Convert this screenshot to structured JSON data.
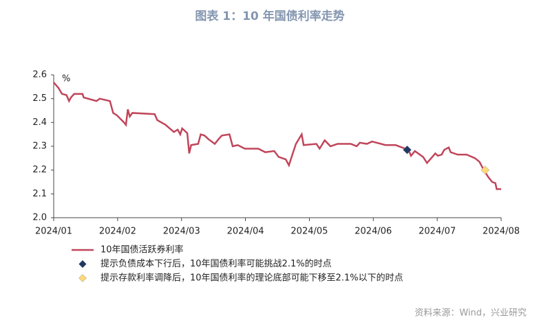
{
  "chart_data": {
    "type": "line",
    "title": "图表 1：10 年国债利率走势",
    "y_unit": "%",
    "source": "资料来源：Wind，兴业研究",
    "xlim": [
      0,
      7
    ],
    "xticks": [
      {
        "value": 0,
        "label": "2024/01"
      },
      {
        "value": 1,
        "label": "2024/02"
      },
      {
        "value": 2,
        "label": "2024/03"
      },
      {
        "value": 3,
        "label": "2024/04"
      },
      {
        "value": 4,
        "label": "2024/05"
      },
      {
        "value": 5,
        "label": "2024/06"
      },
      {
        "value": 6,
        "label": "2024/07"
      },
      {
        "value": 7,
        "label": "2024/08"
      }
    ],
    "ylim": [
      2.0,
      2.6
    ],
    "yticks": [
      {
        "value": 2,
        "label": "2.0"
      },
      2.1,
      2.2,
      2.3,
      2.4,
      2.5,
      2.6
    ],
    "grid": false,
    "series": [
      {
        "name": "10年国债活跃券利率",
        "color": "#c0455a",
        "style": "line",
        "x": [
          0,
          0.075,
          0.13,
          0.2,
          0.24,
          0.27,
          0.32,
          0.45,
          0.47,
          0.67,
          0.72,
          0.88,
          0.93,
          0.99,
          1.1,
          1.13,
          1.16,
          1.19,
          1.23,
          1.58,
          1.62,
          1.75,
          1.88,
          1.94,
          1.98,
          2.01,
          2.09,
          2.12,
          2.15,
          2.26,
          2.3,
          2.36,
          2.42,
          2.52,
          2.58,
          2.63,
          2.75,
          2.8,
          2.88,
          2.99,
          3.2,
          3.31,
          3.45,
          3.52,
          3.63,
          3.68,
          3.74,
          3.79,
          3.88,
          3.91,
          4.11,
          4.16,
          4.24,
          4.33,
          4.44,
          4.65,
          4.74,
          4.79,
          4.9,
          4.98,
          5.19,
          5.35,
          5.55,
          5.59,
          5.65,
          5.78,
          5.84,
          5.89,
          5.97,
          6.01,
          6.07,
          6.11,
          6.18,
          6.21,
          6.32,
          6.46,
          6.59,
          6.66,
          6.73,
          6.8,
          6.86,
          6.91,
          6.93,
          7.0
        ],
        "values": [
          2.568,
          2.545,
          2.52,
          2.515,
          2.49,
          2.505,
          2.52,
          2.52,
          2.505,
          2.49,
          2.5,
          2.49,
          2.44,
          2.43,
          2.4,
          2.39,
          2.455,
          2.425,
          2.44,
          2.435,
          2.41,
          2.39,
          2.36,
          2.37,
          2.35,
          2.375,
          2.355,
          2.27,
          2.305,
          2.31,
          2.35,
          2.345,
          2.33,
          2.31,
          2.33,
          2.345,
          2.35,
          2.3,
          2.305,
          2.29,
          2.29,
          2.275,
          2.28,
          2.255,
          2.245,
          2.22,
          2.27,
          2.31,
          2.35,
          2.305,
          2.31,
          2.29,
          2.325,
          2.3,
          2.31,
          2.31,
          2.3,
          2.315,
          2.31,
          2.32,
          2.305,
          2.305,
          2.285,
          2.26,
          2.28,
          2.255,
          2.23,
          2.245,
          2.27,
          2.26,
          2.265,
          2.285,
          2.295,
          2.275,
          2.265,
          2.265,
          2.25,
          2.235,
          2.2,
          2.17,
          2.15,
          2.145,
          2.12,
          2.12
        ]
      },
      {
        "name": "提示负债成本下行后，10年国债利率可能挑战2.1%的时点",
        "color": "#1f3864",
        "style": "diamond",
        "x": [
          5.53
        ],
        "values": [
          2.285
        ]
      },
      {
        "name": "提示存款利率调降后，10年国债利率的理论底部可能下移至2.1%以下的时点",
        "color": "#ffd97a",
        "style": "diamond",
        "x": [
          6.75
        ],
        "values": [
          2.2
        ]
      }
    ]
  }
}
